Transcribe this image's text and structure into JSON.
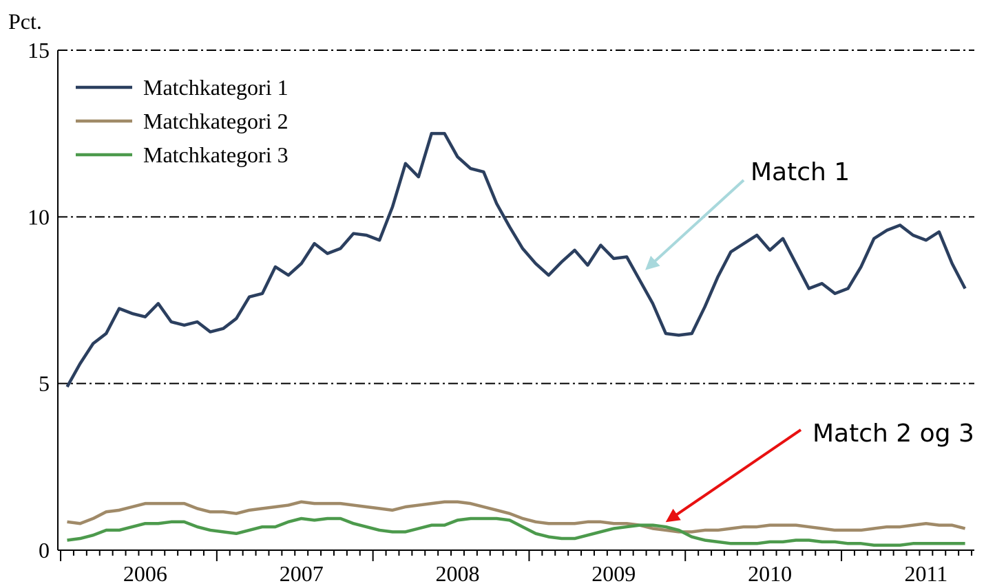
{
  "chart_data": {
    "type": "line",
    "y_label": "Pct.",
    "categories": [
      null,
      null,
      null,
      null,
      null,
      null,
      "2006",
      null,
      null,
      null,
      null,
      null,
      null,
      null,
      null,
      null,
      null,
      null,
      "2007",
      null,
      null,
      null,
      null,
      null,
      null,
      null,
      null,
      null,
      null,
      null,
      "2008",
      null,
      null,
      null,
      null,
      null,
      null,
      null,
      null,
      null,
      null,
      null,
      "2009",
      null,
      null,
      null,
      null,
      null,
      null,
      null,
      null,
      null,
      null,
      null,
      "2010",
      null,
      null,
      null,
      null,
      null,
      null,
      null,
      null,
      null,
      null,
      null,
      "2011",
      null,
      null,
      null
    ],
    "series": [
      {
        "name": "Matchkategori 1",
        "color": "#2b3f5f",
        "values": [
          4.9,
          5.6,
          6.2,
          6.5,
          7.25,
          7.1,
          7.0,
          7.4,
          6.85,
          6.75,
          6.85,
          6.55,
          6.65,
          6.95,
          7.6,
          7.7,
          8.5,
          8.25,
          8.6,
          9.2,
          8.9,
          9.05,
          9.5,
          9.45,
          9.3,
          10.3,
          11.6,
          11.2,
          12.5,
          12.5,
          11.8,
          11.45,
          11.35,
          10.4,
          9.7,
          9.05,
          8.6,
          8.25,
          8.65,
          9.0,
          8.55,
          9.15,
          8.75,
          8.8,
          8.1,
          7.4,
          6.5,
          6.45,
          6.5,
          7.3,
          8.2,
          8.95,
          9.2,
          9.45,
          9.0,
          9.35,
          8.6,
          7.85,
          8.0,
          7.7,
          7.85,
          8.5,
          9.35,
          9.6,
          9.75,
          9.45,
          9.3,
          9.55,
          8.6,
          7.85
        ]
      },
      {
        "name": "Matchkategori 2",
        "color": "#a08a68",
        "values": [
          0.85,
          0.8,
          0.95,
          1.15,
          1.2,
          1.3,
          1.4,
          1.4,
          1.4,
          1.4,
          1.25,
          1.15,
          1.15,
          1.1,
          1.2,
          1.25,
          1.3,
          1.35,
          1.45,
          1.4,
          1.4,
          1.4,
          1.35,
          1.3,
          1.25,
          1.2,
          1.3,
          1.35,
          1.4,
          1.45,
          1.45,
          1.4,
          1.3,
          1.2,
          1.1,
          0.95,
          0.85,
          0.8,
          0.8,
          0.8,
          0.85,
          0.85,
          0.8,
          0.8,
          0.75,
          0.65,
          0.6,
          0.55,
          0.55,
          0.6,
          0.6,
          0.65,
          0.7,
          0.7,
          0.75,
          0.75,
          0.75,
          0.7,
          0.65,
          0.6,
          0.6,
          0.6,
          0.65,
          0.7,
          0.7,
          0.75,
          0.8,
          0.75,
          0.75,
          0.65
        ]
      },
      {
        "name": "Matchkategori 3",
        "color": "#4c9a4c",
        "values": [
          0.3,
          0.35,
          0.45,
          0.6,
          0.6,
          0.7,
          0.8,
          0.8,
          0.85,
          0.85,
          0.7,
          0.6,
          0.55,
          0.5,
          0.6,
          0.7,
          0.7,
          0.85,
          0.95,
          0.9,
          0.95,
          0.95,
          0.8,
          0.7,
          0.6,
          0.55,
          0.55,
          0.65,
          0.75,
          0.75,
          0.9,
          0.95,
          0.95,
          0.95,
          0.9,
          0.7,
          0.5,
          0.4,
          0.35,
          0.35,
          0.45,
          0.55,
          0.65,
          0.7,
          0.75,
          0.75,
          0.7,
          0.6,
          0.4,
          0.3,
          0.25,
          0.2,
          0.2,
          0.2,
          0.25,
          0.25,
          0.3,
          0.3,
          0.25,
          0.25,
          0.2,
          0.2,
          0.15,
          0.15,
          0.15,
          0.2,
          0.2,
          0.2,
          0.2,
          0.2
        ]
      }
    ],
    "ylim": [
      0,
      15
    ],
    "yticks": [
      0,
      5,
      10,
      15
    ],
    "grid": true,
    "legend": "top-left",
    "annotations": [
      {
        "text": "Match 1",
        "color": "#a8d8dc"
      },
      {
        "text": "Match 2 og 3",
        "color": "#e81010"
      }
    ]
  }
}
